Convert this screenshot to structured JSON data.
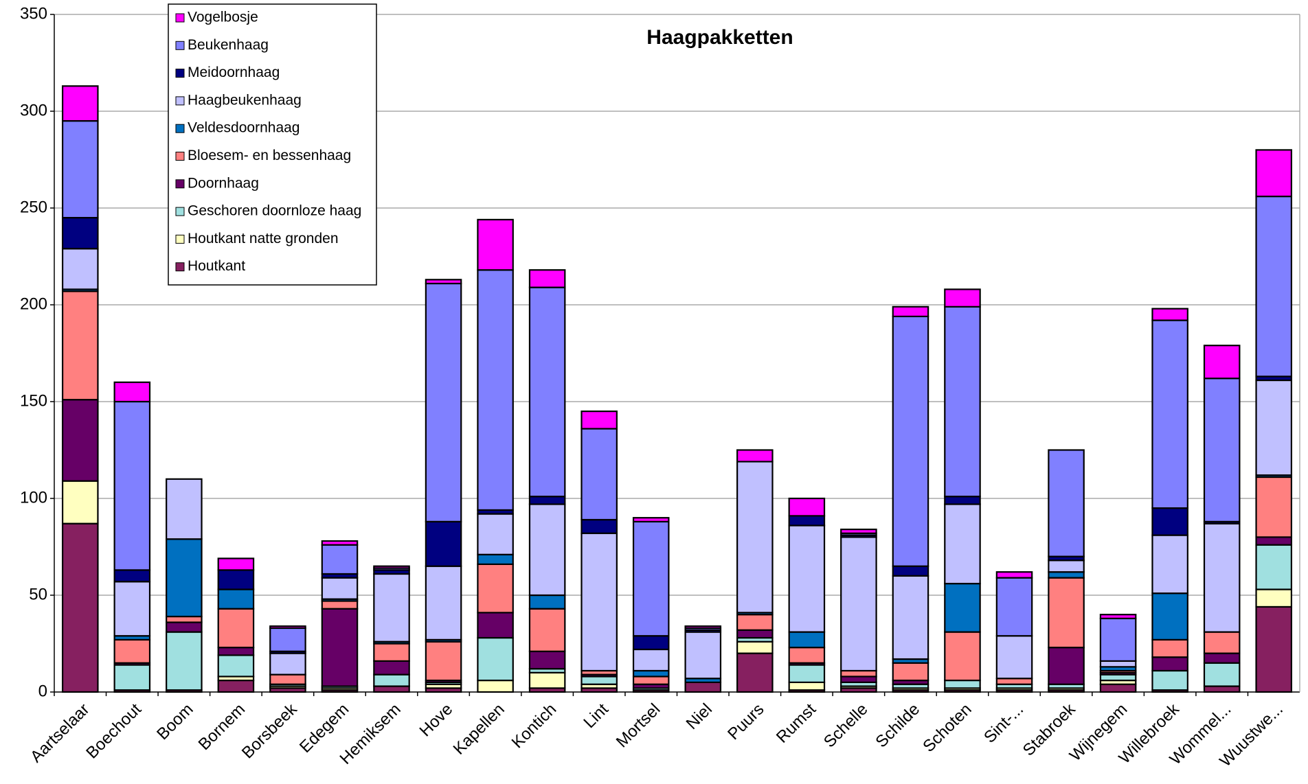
{
  "chart_data": {
    "type": "bar",
    "stacked": true,
    "title": "Haagpakketten",
    "categories": [
      "Aartselaar",
      "Boechout",
      "Boom",
      "Bornem",
      "Borsbeek",
      "Edegem",
      "Hemiksem",
      "Hove",
      "Kapellen",
      "Kontich",
      "Lint",
      "Mortsel",
      "Niel",
      "Puurs",
      "Rumst",
      "Schelle",
      "Schilde",
      "Schoten",
      "Sint-...",
      "Stabroek",
      "Wijnegem",
      "Willebroek",
      "Wommel...",
      "Wuustwe..."
    ],
    "series": [
      {
        "name": "Houtkant",
        "color": "#862060",
        "values": [
          87,
          1,
          1,
          6,
          2,
          1,
          3,
          2,
          0,
          2,
          2,
          1,
          5,
          20,
          1,
          2,
          1,
          1,
          1,
          1,
          4,
          1,
          3,
          44
        ]
      },
      {
        "name": "Houtkant natte gronden",
        "color": "#ffffc0",
        "values": [
          22,
          0,
          0,
          2,
          1,
          1,
          0,
          2,
          6,
          8,
          2,
          0,
          0,
          6,
          4,
          1,
          1,
          1,
          1,
          1,
          2,
          0,
          0,
          9
        ]
      },
      {
        "name": "Geschoren doornloze haag",
        "color": "#a0e0e0",
        "values": [
          0,
          13,
          30,
          11,
          1,
          1,
          6,
          1,
          22,
          2,
          4,
          1,
          0,
          2,
          9,
          2,
          2,
          4,
          2,
          2,
          3,
          10,
          12,
          23
        ]
      },
      {
        "name": "Doornhaag",
        "color": "#660066",
        "values": [
          42,
          1,
          5,
          4,
          0,
          40,
          7,
          1,
          13,
          9,
          1,
          2,
          0,
          4,
          1,
          3,
          2,
          0,
          0,
          19,
          1,
          7,
          5,
          4
        ]
      },
      {
        "name": "Bloesem- en bessenhaag",
        "color": "#ff8080",
        "values": [
          56,
          12,
          3,
          20,
          5,
          4,
          9,
          20,
          25,
          22,
          2,
          4,
          0,
          8,
          8,
          3,
          9,
          25,
          3,
          36,
          1,
          9,
          11,
          31
        ]
      },
      {
        "name": "Veldesdoornhaag",
        "color": "#0070c0",
        "values": [
          1,
          2,
          40,
          10,
          0,
          1,
          1,
          1,
          5,
          7,
          0,
          3,
          2,
          1,
          8,
          0,
          2,
          25,
          0,
          3,
          2,
          24,
          0,
          1
        ]
      },
      {
        "name": "Haagbeukenhaag",
        "color": "#c0c0ff",
        "values": [
          21,
          28,
          31,
          0,
          11,
          11,
          35,
          38,
          21,
          47,
          71,
          11,
          24,
          78,
          55,
          69,
          43,
          41,
          22,
          6,
          3,
          30,
          56,
          49
        ]
      },
      {
        "name": "Meidoornhaag",
        "color": "#000080",
        "values": [
          16,
          6,
          0,
          10,
          1,
          2,
          2,
          23,
          2,
          4,
          7,
          7,
          1,
          0,
          5,
          1,
          5,
          4,
          0,
          2,
          0,
          14,
          1,
          2
        ]
      },
      {
        "name": "Beukenhaag",
        "color": "#8080ff",
        "values": [
          50,
          87,
          0,
          0,
          12,
          15,
          1,
          123,
          124,
          108,
          47,
          59,
          1,
          0,
          0,
          1,
          129,
          98,
          30,
          55,
          22,
          97,
          74,
          93
        ]
      },
      {
        "name": "Vogelbosje",
        "color": "#ff00ff",
        "values": [
          18,
          10,
          0,
          6,
          1,
          2,
          1,
          2,
          26,
          9,
          9,
          2,
          1,
          6,
          9,
          2,
          5,
          9,
          3,
          0,
          2,
          6,
          17,
          24
        ]
      }
    ],
    "ylim": [
      0,
      350
    ],
    "yticks": [
      0,
      50,
      100,
      150,
      200,
      250,
      300,
      350
    ],
    "grid": true,
    "legend": "upper left"
  }
}
